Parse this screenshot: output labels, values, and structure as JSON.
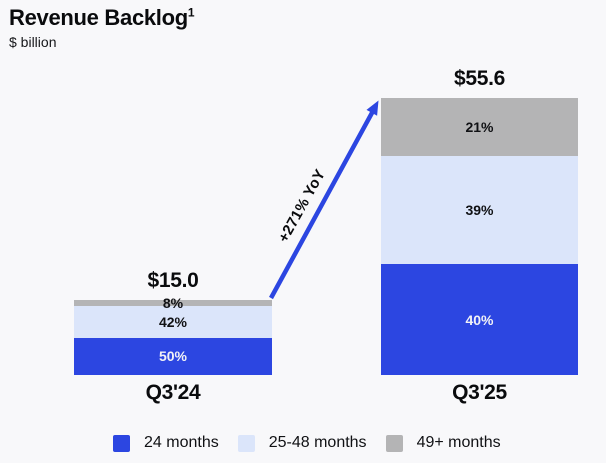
{
  "header": {
    "title": "Revenue Backlog",
    "footnote_marker": "1",
    "subtitle": "$ billion"
  },
  "chart_data": {
    "type": "bar",
    "stacked": true,
    "unit": "$ billion",
    "title": "Revenue Backlog",
    "categories": [
      "Q3'24",
      "Q3'25"
    ],
    "totals": [
      15.0,
      55.6
    ],
    "total_labels": [
      "$15.0",
      "$55.6"
    ],
    "series": [
      {
        "name": "24 months",
        "values": [
          50,
          40
        ],
        "color": "#2C46E1",
        "label_color": "#F2F2F6"
      },
      {
        "name": "25-48 months",
        "values": [
          42,
          39
        ],
        "color": "#DBE5FA",
        "label_color": "#101114"
      },
      {
        "name": "49+ months",
        "values": [
          8,
          21
        ],
        "color": "#B4B4B5",
        "label_color": "#101114"
      }
    ],
    "value_suffix": "%",
    "annotation": {
      "text": "+271% YoY",
      "color": "#2C46E1"
    },
    "legend_position": "bottom",
    "axes": "none"
  },
  "colors": {
    "background": "#F8F8FA",
    "text": "#0A0B0D",
    "accent_blue": "#2C46E1"
  }
}
